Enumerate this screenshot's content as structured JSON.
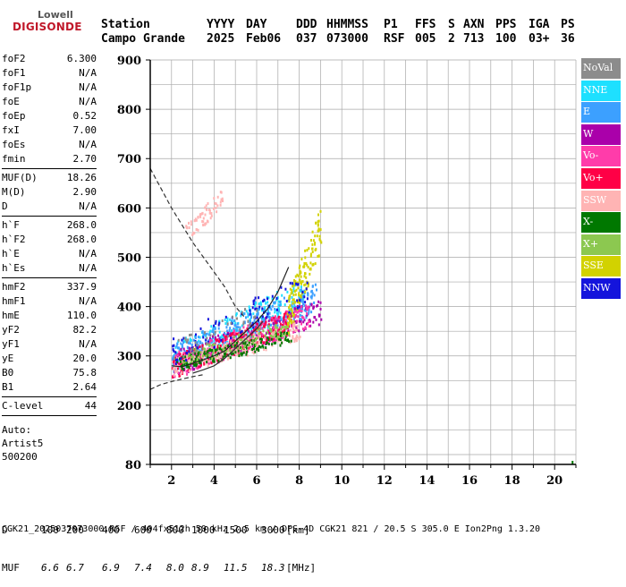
{
  "logo": {
    "line1": "Lowell",
    "line2": "DIGISONDE"
  },
  "header": {
    "labels": [
      "Station",
      "YYYY",
      "DAY",
      "DDD",
      "HHMMSS",
      "P1",
      "FFS",
      "S",
      "AXN",
      "PPS",
      "IGA",
      "PS"
    ],
    "values": [
      "Campo Grande",
      "2025",
      "Feb06",
      "037",
      "073000",
      "RSF",
      "005",
      "2",
      "713",
      "100",
      "03+",
      "36"
    ]
  },
  "params": [
    {
      "group": [
        {
          "name": "foF2",
          "value": "6.300"
        },
        {
          "name": "foF1",
          "value": "N/A"
        },
        {
          "name": "foF1p",
          "value": "N/A"
        },
        {
          "name": "foE",
          "value": "N/A"
        },
        {
          "name": "foEp",
          "value": "0.52"
        },
        {
          "name": "fxI",
          "value": "7.00"
        },
        {
          "name": "foEs",
          "value": "N/A"
        },
        {
          "name": "fmin",
          "value": "2.70"
        }
      ]
    },
    {
      "group": [
        {
          "name": "MUF(D)",
          "value": "18.26"
        },
        {
          "name": "M(D)",
          "value": "2.90"
        },
        {
          "name": "D",
          "value": "N/A"
        }
      ]
    },
    {
      "group": [
        {
          "name": "h`F",
          "value": "268.0"
        },
        {
          "name": "h`F2",
          "value": "268.0"
        },
        {
          "name": "h`E",
          "value": "N/A"
        },
        {
          "name": "h`Es",
          "value": "N/A"
        }
      ]
    },
    {
      "group": [
        {
          "name": "hmF2",
          "value": "337.9"
        },
        {
          "name": "hmF1",
          "value": "N/A"
        },
        {
          "name": "hmE",
          "value": "110.0"
        },
        {
          "name": "yF2",
          "value": "82.2"
        },
        {
          "name": "yF1",
          "value": "N/A"
        },
        {
          "name": "yE",
          "value": "20.0"
        },
        {
          "name": "B0",
          "value": "75.8"
        },
        {
          "name": "B1",
          "value": "2.64"
        }
      ]
    },
    {
      "group": [
        {
          "name": "C-level",
          "value": "44"
        }
      ]
    }
  ],
  "auto_block": [
    "Auto:",
    "Artist5",
    "500200"
  ],
  "legend": [
    {
      "label": "NoVal",
      "color": "#8c8c8c"
    },
    {
      "label": "NNE",
      "color": "#1ee0ff"
    },
    {
      "label": "E",
      "color": "#3ca0ff"
    },
    {
      "label": "W",
      "color": "#aa00aa"
    },
    {
      "label": "Vo-",
      "color": "#ff3caa"
    },
    {
      "label": "Vo+",
      "color": "#ff0046"
    },
    {
      "label": "SSW",
      "color": "#ffb4b4"
    },
    {
      "label": "X-",
      "color": "#007800"
    },
    {
      "label": "X+",
      "color": "#8cc850"
    },
    {
      "label": "SSE",
      "color": "#d2d200"
    },
    {
      "label": "NNW",
      "color": "#1414dc"
    }
  ],
  "muf_table": {
    "d_label": "D",
    "d_values": [
      "100",
      "200",
      "400",
      "600",
      "800",
      "1000",
      "1500",
      "3000",
      "[km]"
    ],
    "muf_label": "MUF",
    "muf_values": [
      "6.6",
      "6.7",
      "6.9",
      "7.4",
      "8.0",
      "8.9",
      "11.5",
      "18.3",
      "[MHz]"
    ]
  },
  "footer": "CGK21_2025037073000.RSF / 404fx512h 50 kHz 2.5 km / DPS-4D CGK21 821 / 20.5 S 305.0 E Ion2Png 1.3.20",
  "chart_data": {
    "type": "scatter",
    "xlim": [
      1,
      21
    ],
    "ylim": [
      80,
      900
    ],
    "y_tick_positions": [
      80,
      200,
      300,
      400,
      500,
      600,
      700,
      800,
      900
    ],
    "xticks": [
      2,
      4,
      6,
      8,
      10,
      12,
      14,
      16,
      18,
      20
    ],
    "yticks": [
      80,
      200,
      300,
      400,
      500,
      600,
      700,
      800,
      900
    ],
    "grid": true,
    "legend_position": "right",
    "trace_clusters": [
      {
        "series": "NNE",
        "x": [
          2.0,
          8.2
        ],
        "y": [
          280,
          470
        ],
        "n": 260
      },
      {
        "series": "E",
        "x": [
          2.0,
          8.8
        ],
        "y": [
          285,
          460
        ],
        "n": 300
      },
      {
        "series": "W",
        "x": [
          2.0,
          9.0
        ],
        "y": [
          275,
          430
        ],
        "n": 220
      },
      {
        "series": "Vo-",
        "x": [
          2.0,
          8.5
        ],
        "y": [
          270,
          420
        ],
        "n": 260
      },
      {
        "series": "Vo+",
        "x": [
          2.0,
          7.5
        ],
        "y": [
          270,
          400
        ],
        "n": 200
      },
      {
        "series": "SSW",
        "x": [
          2.0,
          8.0
        ],
        "y": [
          270,
          380
        ],
        "n": 220
      },
      {
        "series": "SSW",
        "x": [
          2.6,
          4.4
        ],
        "y": [
          540,
          650
        ],
        "n": 60
      },
      {
        "series": "X-",
        "x": [
          2.2,
          7.6
        ],
        "y": [
          280,
          360
        ],
        "n": 160
      },
      {
        "series": "X+",
        "x": [
          2.5,
          7.5
        ],
        "y": [
          290,
          380
        ],
        "n": 100
      },
      {
        "series": "SSE",
        "x": [
          7.4,
          9.0
        ],
        "y": [
          360,
          620
        ],
        "n": 140
      },
      {
        "series": "NNW",
        "x": [
          2.0,
          8.4
        ],
        "y": [
          300,
          480
        ],
        "n": 90
      },
      {
        "series": "NoVal",
        "x": [
          2.0,
          6.0
        ],
        "y": [
          300,
          420
        ],
        "n": 40
      }
    ],
    "curves": [
      {
        "name": "dashed",
        "style": "dashed",
        "x": [
          1.0,
          1.5,
          2.0,
          2.5,
          3.0,
          3.5,
          4.0,
          4.5,
          5.0,
          5.4
        ],
        "y": [
          680,
          640,
          600,
          565,
          530,
          500,
          470,
          440,
          400,
          380
        ]
      },
      {
        "name": "dashed-low",
        "style": "dashed",
        "x": [
          1.0,
          1.5,
          2.0,
          2.5,
          3.0,
          3.5
        ],
        "y": [
          232,
          242,
          248,
          253,
          258,
          262
        ]
      },
      {
        "name": "solid-lower",
        "style": "solid",
        "x": [
          3.0,
          3.5,
          4.0,
          4.5,
          5.0,
          5.5,
          6.0,
          6.3
        ],
        "y": [
          265,
          272,
          280,
          295,
          315,
          335,
          355,
          370
        ]
      },
      {
        "name": "trace-line",
        "style": "solid",
        "x": [
          2.0,
          2.5,
          3.0,
          3.5,
          4.0,
          4.5,
          5.0,
          5.5,
          6.0,
          6.5,
          7.0,
          7.5
        ],
        "y": [
          280,
          278,
          285,
          292,
          300,
          310,
          330,
          350,
          370,
          395,
          430,
          480
        ]
      }
    ]
  }
}
